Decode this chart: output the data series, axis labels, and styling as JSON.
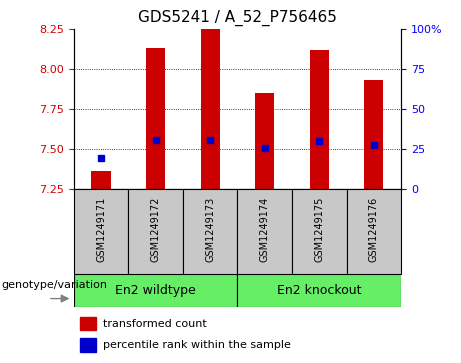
{
  "title": "GDS5241 / A_52_P756465",
  "samples": [
    "GSM1249171",
    "GSM1249172",
    "GSM1249173",
    "GSM1249174",
    "GSM1249175",
    "GSM1249176"
  ],
  "red_values": [
    7.36,
    8.13,
    8.25,
    7.85,
    8.12,
    7.93
  ],
  "blue_values": [
    7.44,
    7.555,
    7.555,
    7.505,
    7.55,
    7.525
  ],
  "ylim": [
    7.25,
    8.25
  ],
  "yticks": [
    7.25,
    7.5,
    7.75,
    8.0,
    8.25
  ],
  "y2ticks": [
    0,
    25,
    50,
    75,
    100
  ],
  "y2labels": [
    "0",
    "25",
    "50",
    "75",
    "100%"
  ],
  "bar_bottom": 7.25,
  "bar_color": "#CC0000",
  "dot_color": "#0000CC",
  "label_area_color": "#C8C8C8",
  "wildtype_color": "#66EE66",
  "knockout_color": "#66EE66",
  "genotype_label": "genotype/variation",
  "group1_label": "En2 wildtype",
  "group2_label": "En2 knockout",
  "legend_transformed": "transformed count",
  "legend_percentile": "percentile rank within the sample",
  "title_fontsize": 11,
  "tick_fontsize": 8,
  "sample_fontsize": 7,
  "group_fontsize": 9,
  "legend_fontsize": 8,
  "geno_fontsize": 8,
  "bar_width": 0.35
}
